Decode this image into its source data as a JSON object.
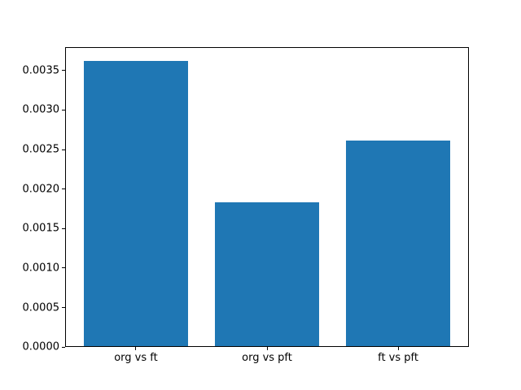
{
  "chart_data": {
    "type": "bar",
    "title": "",
    "xlabel": "",
    "ylabel": "",
    "categories": [
      "org vs ft",
      "org vs pft",
      "ft vs pft"
    ],
    "values": [
      0.00362,
      0.00183,
      0.00261
    ],
    "ylim": [
      0,
      0.0038
    ],
    "yticks": [
      0,
      0.0005,
      0.001,
      0.0015,
      0.002,
      0.0025,
      0.003,
      0.0035
    ],
    "ytick_labels": [
      "0.0000",
      "0.0005",
      "0.0010",
      "0.0015",
      "0.0020",
      "0.0025",
      "0.0030",
      "0.0035"
    ],
    "bar_width_fraction": 0.8,
    "x_margin_fraction": 0.05,
    "bar_color": "#1f77b4",
    "axis_color": "#000000",
    "background_color": "#ffffff",
    "grid": false,
    "legend": false
  }
}
